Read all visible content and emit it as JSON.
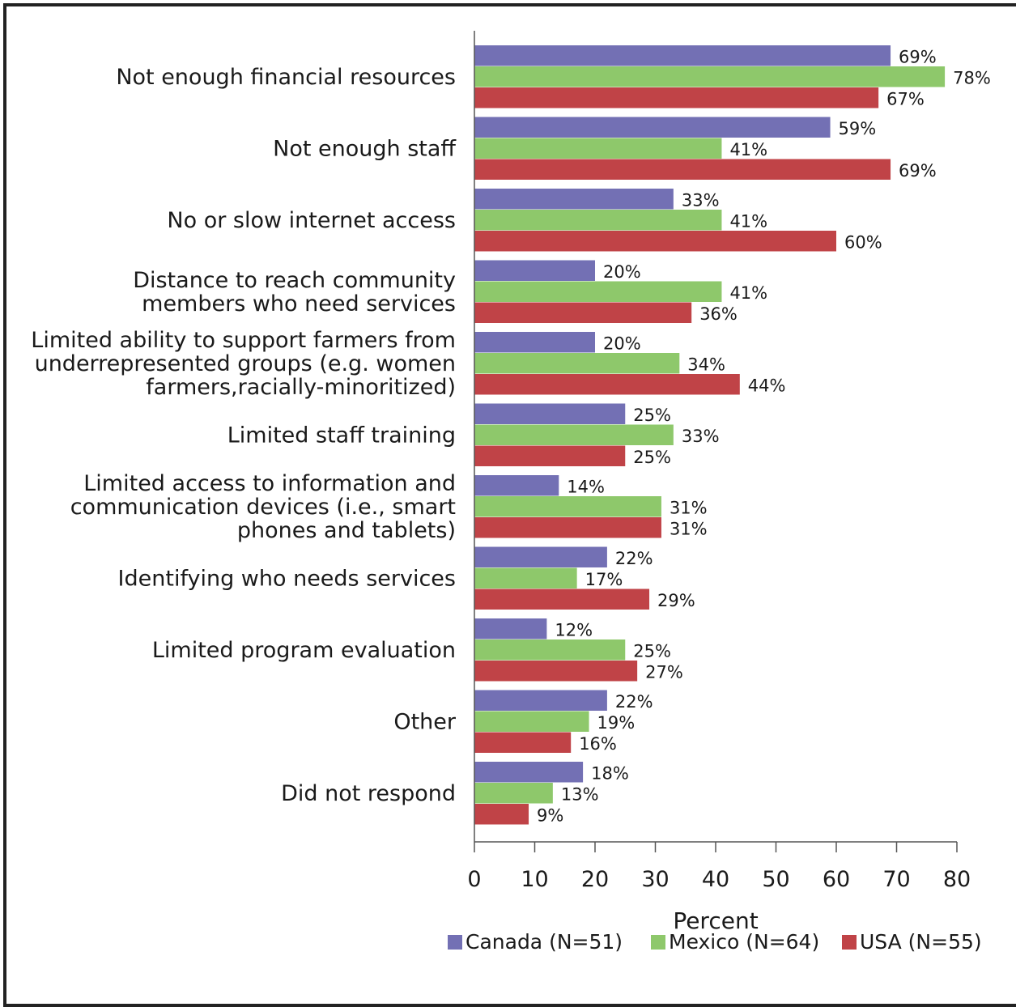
{
  "chart_data": {
    "type": "bar",
    "orientation": "horizontal",
    "categories": [
      [
        "Not enough financial resources"
      ],
      [
        "Not enough staff"
      ],
      [
        "No or slow internet access"
      ],
      [
        "Distance to reach community",
        "members who need services"
      ],
      [
        "Limited ability to support farmers from",
        "underrepresented groups (e.g. women",
        "farmers,racially-minoritized)"
      ],
      [
        "Limited staff training"
      ],
      [
        "Limited access to information and",
        "communication devices (i.e., smart",
        "phones and tablets)"
      ],
      [
        "Identifying who needs services"
      ],
      [
        "Limited program evaluation"
      ],
      [
        "Other"
      ],
      [
        "Did not respond"
      ]
    ],
    "series": [
      {
        "name": "Canada (N=51)",
        "color": "#7370b4",
        "values": [
          69,
          59,
          33,
          20,
          20,
          25,
          14,
          22,
          12,
          22,
          18
        ],
        "labels": [
          "69%",
          "59%",
          "33%",
          "20%",
          "20%",
          "25%",
          "14%",
          "22%",
          "12%",
          "22%",
          "18%"
        ]
      },
      {
        "name": "Mexico (N=64)",
        "color": "#8ec86b",
        "values": [
          78,
          41,
          41,
          41,
          34,
          33,
          31,
          17,
          25,
          19,
          13
        ],
        "labels": [
          "78%",
          "41%",
          "41%",
          "41%",
          "34%",
          "33%",
          "31%",
          "17%",
          "25%",
          "19%",
          "13%"
        ]
      },
      {
        "name": "USA (N=55)",
        "color": "#c04347",
        "values": [
          67,
          69,
          60,
          36,
          44,
          25,
          31,
          29,
          27,
          16,
          9
        ],
        "labels": [
          "67%",
          "69%",
          "60%",
          "36%",
          "44%",
          "25%",
          "31%",
          "29%",
          "27%",
          "16%",
          "9%"
        ]
      }
    ],
    "xlabel": "Percent",
    "ylabel": "",
    "xlim": [
      0,
      80
    ],
    "xticks": [
      0,
      10,
      20,
      30,
      40,
      50,
      60,
      70,
      80
    ],
    "grid": false,
    "legend_position": "bottom"
  }
}
